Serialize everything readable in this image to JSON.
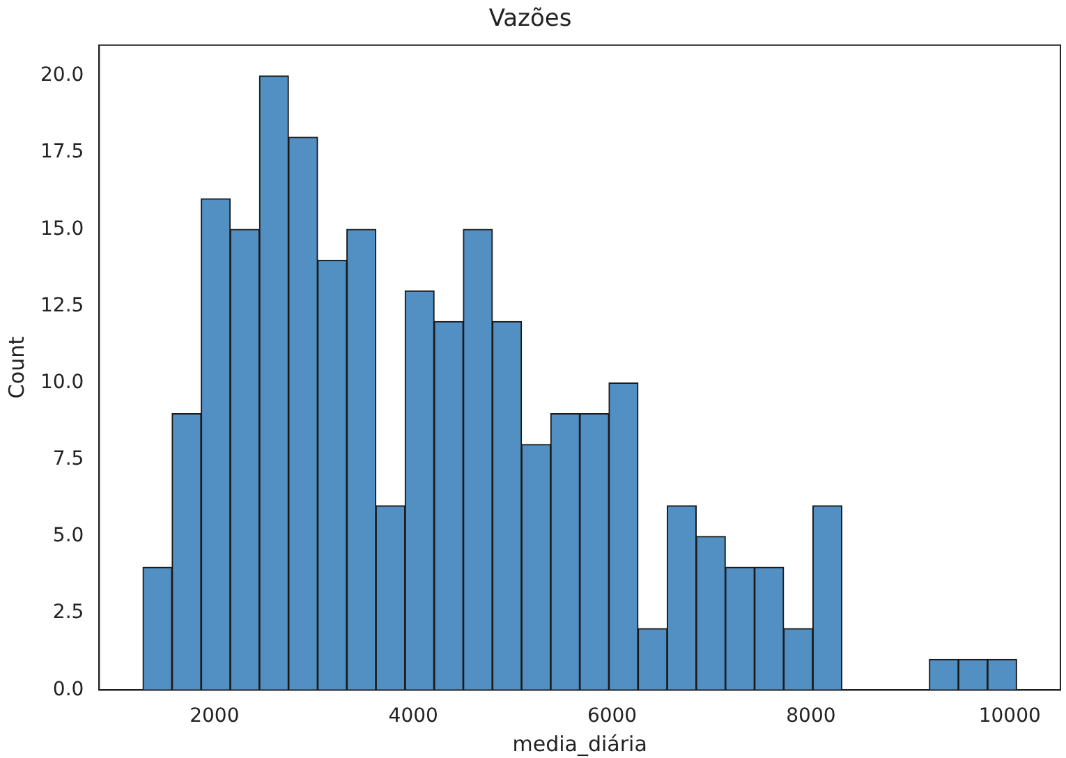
{
  "chart_data": {
    "type": "histogram",
    "title": "Vazões",
    "xlabel": "media_diária",
    "ylabel": "Count",
    "bins": [
      1280,
      1573,
      1866,
      2159,
      2452,
      2745,
      3038,
      3331,
      3624,
      3917,
      4210,
      4503,
      4796,
      5089,
      5382,
      5675,
      5968,
      6261,
      6554,
      6847,
      7140,
      7433,
      7726,
      8019,
      8312,
      8605,
      8898,
      9191,
      9484,
      9777,
      10070
    ],
    "values": [
      4,
      9,
      16,
      15,
      20,
      18,
      14,
      15,
      6,
      13,
      12,
      15,
      12,
      8,
      9,
      9,
      10,
      2,
      6,
      5,
      4,
      4,
      2,
      6,
      0,
      0,
      0,
      1,
      1,
      1
    ],
    "color": "#5290c3",
    "xlim": [
      840,
      10510
    ],
    "xticks": [
      2000,
      4000,
      6000,
      8000,
      10000
    ],
    "ylim": [
      0,
      21
    ],
    "yticks": [
      {
        "value": 0,
        "label": "0.0"
      },
      {
        "value": 2.5,
        "label": "2.5"
      },
      {
        "value": 5,
        "label": "5.0"
      },
      {
        "value": 7.5,
        "label": "7.5"
      },
      {
        "value": 10,
        "label": "10.0"
      },
      {
        "value": 12.5,
        "label": "12.5"
      },
      {
        "value": 15,
        "label": "15.0"
      },
      {
        "value": 17.5,
        "label": "17.5"
      },
      {
        "value": 20,
        "label": "20.0"
      }
    ],
    "grid": false
  }
}
